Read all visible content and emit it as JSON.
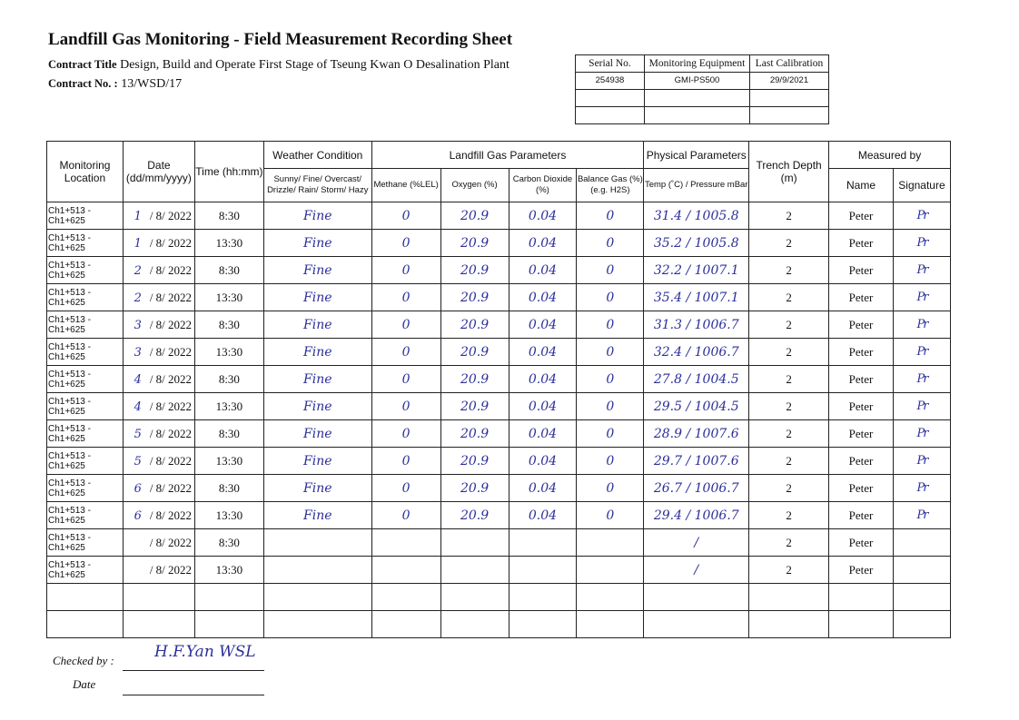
{
  "header": {
    "title": "Landfill Gas Monitoring - Field Measurement Recording Sheet",
    "contract_title_label": "Contract Title",
    "contract_title": "Design, Build and Operate First Stage of Tseung Kwan O Desalination Plant",
    "contract_no_label": "Contract No. :",
    "contract_no": "13/WSD/17"
  },
  "equipment": {
    "headers": [
      "Serial No.",
      "Monitoring Equipment",
      "Last Calibration"
    ],
    "row": [
      "254938",
      "GMI-PS500",
      "29/9/2021"
    ]
  },
  "table": {
    "group_headers": {
      "weather": "Weather Condition",
      "gas": "Landfill Gas Parameters",
      "physical": "Physical Parameters",
      "measured": "Measured by"
    },
    "headers": {
      "location": "Monitoring Location",
      "date": "Date (dd/mm/yyyy)",
      "time": "Time (hh:mm)",
      "weather": "Sunny/ Fine/ Overcast/ Drizzle/ Rain/ Storm/ Hazy",
      "methane": "Methane (%LEL)",
      "oxygen": "Oxygen (%)",
      "co2": "Carbon Dioxide (%)",
      "balance": "Balance Gas (%) (e.g. H2S)",
      "temp": "Temp (˚C) / Pressure mBar",
      "depth": "Trench Depth (m)",
      "name": "Name",
      "signature": "Signature"
    },
    "rows": [
      {
        "location": "Ch1+513 - Ch1+625",
        "day": "1",
        "date": "/ 8/ 2022",
        "time": "8:30",
        "weather": "Fine",
        "methane": "0",
        "oxygen": "20.9",
        "co2": "0.04",
        "balance": "0",
        "temp_pressure": "31.4 / 1005.8",
        "depth": "2",
        "name": "Peter",
        "signature": "Pr"
      },
      {
        "location": "Ch1+513 - Ch1+625",
        "day": "1",
        "date": "/ 8/ 2022",
        "time": "13:30",
        "weather": "Fine",
        "methane": "0",
        "oxygen": "20.9",
        "co2": "0.04",
        "balance": "0",
        "temp_pressure": "35.2 / 1005.8",
        "depth": "2",
        "name": "Peter",
        "signature": "Pr"
      },
      {
        "location": "Ch1+513 - Ch1+625",
        "day": "2",
        "date": "/ 8/ 2022",
        "time": "8:30",
        "weather": "Fine",
        "methane": "0",
        "oxygen": "20.9",
        "co2": "0.04",
        "balance": "0",
        "temp_pressure": "32.2 / 1007.1",
        "depth": "2",
        "name": "Peter",
        "signature": "Pr"
      },
      {
        "location": "Ch1+513 - Ch1+625",
        "day": "2",
        "date": "/ 8/ 2022",
        "time": "13:30",
        "weather": "Fine",
        "methane": "0",
        "oxygen": "20.9",
        "co2": "0.04",
        "balance": "0",
        "temp_pressure": "35.4 / 1007.1",
        "depth": "2",
        "name": "Peter",
        "signature": "Pr"
      },
      {
        "location": "Ch1+513 - Ch1+625",
        "day": "3",
        "date": "/ 8/ 2022",
        "time": "8:30",
        "weather": "Fine",
        "methane": "0",
        "oxygen": "20.9",
        "co2": "0.04",
        "balance": "0",
        "temp_pressure": "31.3 / 1006.7",
        "depth": "2",
        "name": "Peter",
        "signature": "Pr"
      },
      {
        "location": "Ch1+513 - Ch1+625",
        "day": "3",
        "date": "/ 8/ 2022",
        "time": "13:30",
        "weather": "Fine",
        "methane": "0",
        "oxygen": "20.9",
        "co2": "0.04",
        "balance": "0",
        "temp_pressure": "32.4 / 1006.7",
        "depth": "2",
        "name": "Peter",
        "signature": "Pr"
      },
      {
        "location": "Ch1+513 - Ch1+625",
        "day": "4",
        "date": "/ 8/ 2022",
        "time": "8:30",
        "weather": "Fine",
        "methane": "0",
        "oxygen": "20.9",
        "co2": "0.04",
        "balance": "0",
        "temp_pressure": "27.8 / 1004.5",
        "depth": "2",
        "name": "Peter",
        "signature": "Pr"
      },
      {
        "location": "Ch1+513 - Ch1+625",
        "day": "4",
        "date": "/ 8/ 2022",
        "time": "13:30",
        "weather": "Fine",
        "methane": "0",
        "oxygen": "20.9",
        "co2": "0.04",
        "balance": "0",
        "temp_pressure": "29.5 / 1004.5",
        "depth": "2",
        "name": "Peter",
        "signature": "Pr"
      },
      {
        "location": "Ch1+513 - Ch1+625",
        "day": "5",
        "date": "/ 8/ 2022",
        "time": "8:30",
        "weather": "Fine",
        "methane": "0",
        "oxygen": "20.9",
        "co2": "0.04",
        "balance": "0",
        "temp_pressure": "28.9 / 1007.6",
        "depth": "2",
        "name": "Peter",
        "signature": "Pr"
      },
      {
        "location": "Ch1+513 - Ch1+625",
        "day": "5",
        "date": "/ 8/ 2022",
        "time": "13:30",
        "weather": "Fine",
        "methane": "0",
        "oxygen": "20.9",
        "co2": "0.04",
        "balance": "0",
        "temp_pressure": "29.7 / 1007.6",
        "depth": "2",
        "name": "Peter",
        "signature": "Pr"
      },
      {
        "location": "Ch1+513 - Ch1+625",
        "day": "6",
        "date": "/ 8/ 2022",
        "time": "8:30",
        "weather": "Fine",
        "methane": "0",
        "oxygen": "20.9",
        "co2": "0.04",
        "balance": "0",
        "temp_pressure": "26.7 / 1006.7",
        "depth": "2",
        "name": "Peter",
        "signature": "Pr"
      },
      {
        "location": "Ch1+513 - Ch1+625",
        "day": "6",
        "date": "/ 8/ 2022",
        "time": "13:30",
        "weather": "Fine",
        "methane": "0",
        "oxygen": "20.9",
        "co2": "0.04",
        "balance": "0",
        "temp_pressure": "29.4 / 1006.7",
        "depth": "2",
        "name": "Peter",
        "signature": "Pr"
      },
      {
        "location": "Ch1+513 - Ch1+625",
        "day": "",
        "date": "/ 8/ 2022",
        "time": "8:30",
        "weather": "",
        "methane": "",
        "oxygen": "",
        "co2": "",
        "balance": "",
        "temp_pressure": "/",
        "depth": "2",
        "name": "Peter",
        "signature": ""
      },
      {
        "location": "Ch1+513 - Ch1+625",
        "day": "",
        "date": "/ 8/ 2022",
        "time": "13:30",
        "weather": "",
        "methane": "",
        "oxygen": "",
        "co2": "",
        "balance": "",
        "temp_pressure": "/",
        "depth": "2",
        "name": "Peter",
        "signature": ""
      },
      {
        "location": "",
        "day": "",
        "date": "",
        "time": "",
        "weather": "",
        "methane": "",
        "oxygen": "",
        "co2": "",
        "balance": "",
        "temp_pressure": "",
        "depth": "",
        "name": "",
        "signature": ""
      },
      {
        "location": "",
        "day": "",
        "date": "",
        "time": "",
        "weather": "",
        "methane": "",
        "oxygen": "",
        "co2": "",
        "balance": "",
        "temp_pressure": "",
        "depth": "",
        "name": "",
        "signature": ""
      }
    ]
  },
  "footer": {
    "checked_by_label": "Checked by :",
    "checked_by_value": "H.F.Yan WSL",
    "date_label": "Date"
  }
}
